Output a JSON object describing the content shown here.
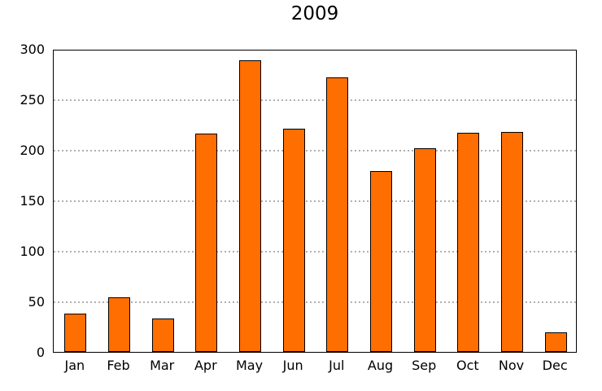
{
  "chart_data": {
    "type": "bar",
    "title": "2009",
    "categories": [
      "Jan",
      "Feb",
      "Mar",
      "Apr",
      "May",
      "Jun",
      "Jul",
      "Aug",
      "Sep",
      "Oct",
      "Nov",
      "Dec"
    ],
    "values": [
      38,
      54,
      33,
      216,
      289,
      221,
      272,
      179,
      202,
      217,
      218,
      19
    ],
    "xlabel": "",
    "ylabel": "",
    "ylim": [
      0,
      300
    ],
    "yticks": [
      0,
      50,
      100,
      150,
      200,
      250,
      300
    ],
    "grid": "horizontal-dotted",
    "legend": "none",
    "colors": {
      "bar_fill": "#ff6e00",
      "bar_border": "#000000",
      "gridline": "#b0b0b0",
      "axis": "#000000",
      "background": "#ffffff",
      "text": "#000000"
    }
  }
}
